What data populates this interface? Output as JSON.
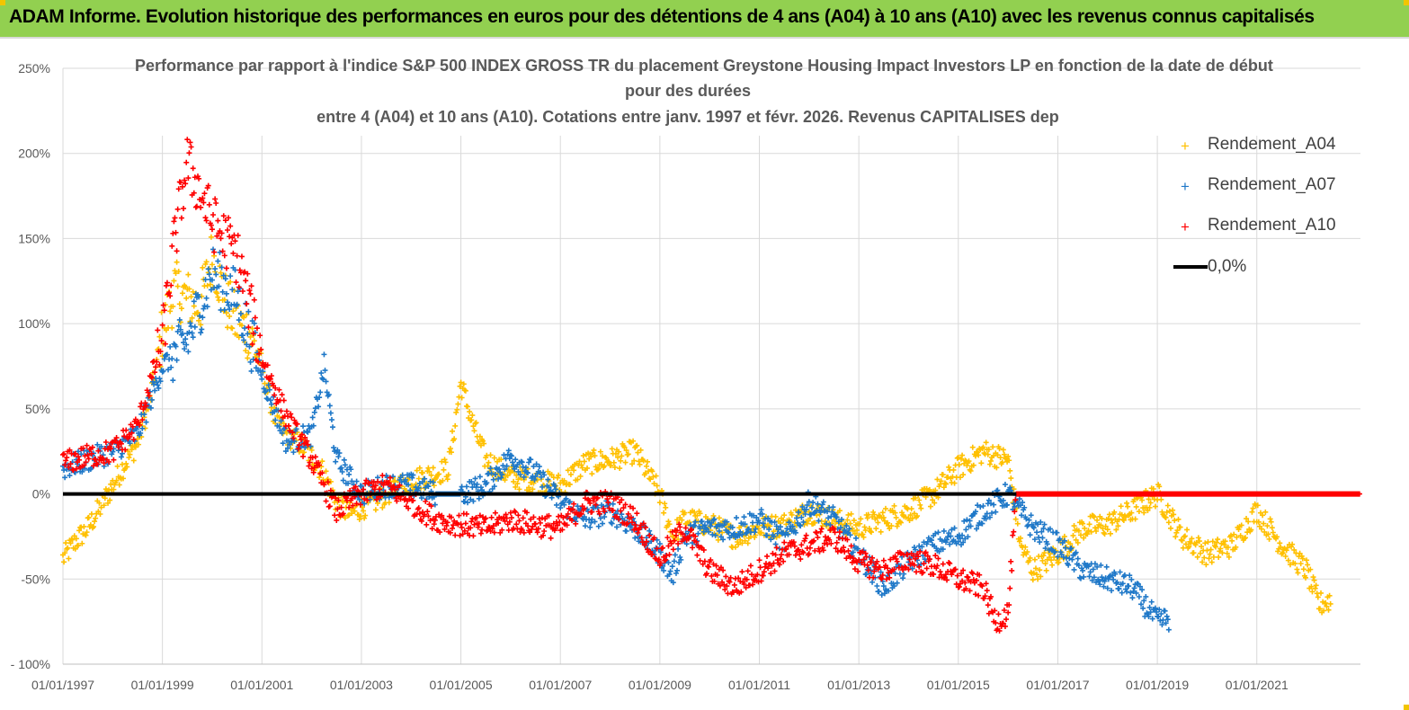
{
  "header": {
    "title": "ADAM Informe. Evolution historique des performances en euros pour des détentions de 4 ans (A04) à 10 ans (A10) avec les revenus connus capitalisés"
  },
  "chart_data": {
    "type": "scatter",
    "title_lines": [
      "Performance par rapport à l'indice S&P 500 INDEX GROSS TR  du placement Greystone Housing Impact Investors LP en fonction de la date de début",
      "pour des durées",
      "entre 4 (A04) et 10 ans (A10). Cotations entre janv. 1997 et févr. 2026. Revenus CAPITALISES dep"
    ],
    "x_axis": {
      "type": "date",
      "range": [
        "1997-01-01",
        "2023-02-01"
      ],
      "tick_labels": [
        "01/01/1997",
        "01/01/1999",
        "01/01/2001",
        "01/01/2003",
        "01/01/2005",
        "01/01/2007",
        "01/01/2009",
        "01/01/2011",
        "01/01/2013",
        "01/01/2015",
        "01/01/2017",
        "01/01/2019",
        "01/01/2021"
      ]
    },
    "y_axis": {
      "range": [
        -100,
        250
      ],
      "unit": "%",
      "tick_labels": [
        "250%",
        "200%",
        "150%",
        "100%",
        "50%",
        "0%",
        "-50%",
        "- 100%"
      ]
    },
    "grid": "vertical and horizontal",
    "legend_position": "top-right",
    "reference_line": {
      "name": "0,0%",
      "value": 0,
      "color": "#000000"
    },
    "series": [
      {
        "name": "Rendement_A04",
        "color": "#ffc000",
        "points": [
          [
            "1997-01",
            -38
          ],
          [
            "1997-04",
            -28
          ],
          [
            "1997-07",
            -20
          ],
          [
            "1997-10",
            -8
          ],
          [
            "1998-01",
            5
          ],
          [
            "1998-04",
            18
          ],
          [
            "1998-07",
            30
          ],
          [
            "1998-10",
            55
          ],
          [
            "1999-01",
            95
          ],
          [
            "1999-04",
            120
          ],
          [
            "1999-07",
            115
          ],
          [
            "1999-10",
            110
          ],
          [
            "2000-01",
            140
          ],
          [
            "2000-04",
            115
          ],
          [
            "2000-07",
            100
          ],
          [
            "2000-10",
            95
          ],
          [
            "2001-01",
            75
          ],
          [
            "2001-04",
            45
          ],
          [
            "2001-07",
            35
          ],
          [
            "2001-10",
            30
          ],
          [
            "2002-01",
            22
          ],
          [
            "2002-04",
            12
          ],
          [
            "2002-07",
            -5
          ],
          [
            "2002-10",
            -12
          ],
          [
            "2003-01",
            -8
          ],
          [
            "2003-04",
            -5
          ],
          [
            "2003-07",
            0
          ],
          [
            "2003-10",
            5
          ],
          [
            "2004-01",
            8
          ],
          [
            "2004-04",
            10
          ],
          [
            "2004-07",
            12
          ],
          [
            "2004-10",
            15
          ],
          [
            "2005-01",
            65
          ],
          [
            "2005-04",
            40
          ],
          [
            "2005-07",
            20
          ],
          [
            "2005-10",
            15
          ],
          [
            "2006-01",
            10
          ],
          [
            "2006-07",
            8
          ],
          [
            "2007-01",
            5
          ],
          [
            "2007-07",
            18
          ],
          [
            "2008-01",
            20
          ],
          [
            "2008-07",
            25
          ],
          [
            "2009-01",
            0
          ],
          [
            "2009-04",
            -25
          ],
          [
            "2009-07",
            -15
          ],
          [
            "2010-01",
            -18
          ],
          [
            "2010-07",
            -25
          ],
          [
            "2011-01",
            -20
          ],
          [
            "2011-07",
            -18
          ],
          [
            "2012-01",
            -10
          ],
          [
            "2012-07",
            -15
          ],
          [
            "2013-01",
            -20
          ],
          [
            "2013-07",
            -15
          ],
          [
            "2014-01",
            -10
          ],
          [
            "2014-07",
            0
          ],
          [
            "2015-01",
            15
          ],
          [
            "2015-07",
            25
          ],
          [
            "2016-01",
            20
          ],
          [
            "2016-04",
            -30
          ],
          [
            "2016-07",
            -45
          ],
          [
            "2017-01",
            -35
          ],
          [
            "2017-07",
            -20
          ],
          [
            "2018-01",
            -18
          ],
          [
            "2018-07",
            -10
          ],
          [
            "2019-01",
            0
          ],
          [
            "2019-07",
            -25
          ],
          [
            "2020-01",
            -35
          ],
          [
            "2020-07",
            -30
          ],
          [
            "2021-01",
            -10
          ],
          [
            "2021-07",
            -30
          ],
          [
            "2022-01",
            -45
          ],
          [
            "2022-04",
            -65
          ],
          [
            "2022-07",
            -62
          ]
        ]
      },
      {
        "name": "Rendement_A07",
        "color": "#1f78c8",
        "points": [
          [
            "1997-01",
            15
          ],
          [
            "1997-07",
            20
          ],
          [
            "1998-01",
            25
          ],
          [
            "1998-07",
            35
          ],
          [
            "1999-01",
            75
          ],
          [
            "1999-07",
            90
          ],
          [
            "2000-01",
            130
          ],
          [
            "2000-07",
            115
          ],
          [
            "2001-01",
            70
          ],
          [
            "2001-07",
            30
          ],
          [
            "2002-01",
            35
          ],
          [
            "2002-04",
            75
          ],
          [
            "2002-07",
            20
          ],
          [
            "2003-01",
            0
          ],
          [
            "2003-07",
            5
          ],
          [
            "2004-01",
            5
          ],
          [
            "2004-07",
            0
          ],
          [
            "2005-01",
            0
          ],
          [
            "2005-07",
            5
          ],
          [
            "2006-01",
            22
          ],
          [
            "2006-07",
            12
          ],
          [
            "2007-01",
            -5
          ],
          [
            "2007-07",
            -15
          ],
          [
            "2008-01",
            -10
          ],
          [
            "2008-07",
            -20
          ],
          [
            "2009-01",
            -35
          ],
          [
            "2009-04",
            -48
          ],
          [
            "2009-07",
            -25
          ],
          [
            "2010-01",
            -20
          ],
          [
            "2010-07",
            -20
          ],
          [
            "2011-01",
            -15
          ],
          [
            "2011-07",
            -28
          ],
          [
            "2012-01",
            -5
          ],
          [
            "2012-07",
            -15
          ],
          [
            "2013-01",
            -35
          ],
          [
            "2013-07",
            -55
          ],
          [
            "2014-01",
            -40
          ],
          [
            "2014-07",
            -30
          ],
          [
            "2015-01",
            -25
          ],
          [
            "2015-07",
            -10
          ],
          [
            "2016-01",
            0
          ],
          [
            "2016-07",
            -20
          ],
          [
            "2017-01",
            -30
          ],
          [
            "2017-07",
            -45
          ],
          [
            "2018-01",
            -50
          ],
          [
            "2018-07",
            -55
          ],
          [
            "2019-01",
            -75
          ],
          [
            "2019-04",
            -73
          ]
        ]
      },
      {
        "name": "Rendement_A10",
        "color": "#ff0000",
        "points": [
          [
            "1997-01",
            18
          ],
          [
            "1997-07",
            22
          ],
          [
            "1998-01",
            25
          ],
          [
            "1998-07",
            40
          ],
          [
            "1999-01",
            90
          ],
          [
            "1999-04",
            150
          ],
          [
            "1999-07",
            195
          ],
          [
            "2000-01",
            160
          ],
          [
            "2000-07",
            140
          ],
          [
            "2001-01",
            80
          ],
          [
            "2001-07",
            45
          ],
          [
            "2002-01",
            20
          ],
          [
            "2002-07",
            -10
          ],
          [
            "2003-01",
            0
          ],
          [
            "2003-07",
            5
          ],
          [
            "2004-01",
            -5
          ],
          [
            "2004-07",
            -15
          ],
          [
            "2005-01",
            -18
          ],
          [
            "2005-07",
            -20
          ],
          [
            "2006-01",
            -15
          ],
          [
            "2006-07",
            -18
          ],
          [
            "2007-01",
            -20
          ],
          [
            "2007-07",
            -5
          ],
          [
            "2008-01",
            -5
          ],
          [
            "2008-07",
            -15
          ],
          [
            "2009-01",
            -38
          ],
          [
            "2009-07",
            -20
          ],
          [
            "2010-01",
            -45
          ],
          [
            "2010-07",
            -55
          ],
          [
            "2011-01",
            -45
          ],
          [
            "2011-07",
            -35
          ],
          [
            "2012-01",
            -30
          ],
          [
            "2012-07",
            -25
          ],
          [
            "2013-01",
            -40
          ],
          [
            "2013-07",
            -45
          ],
          [
            "2014-01",
            -38
          ],
          [
            "2014-07",
            -42
          ],
          [
            "2015-01",
            -50
          ],
          [
            "2015-07",
            -55
          ],
          [
            "2015-10",
            -75
          ],
          [
            "2016-01",
            -70
          ],
          [
            "2016-03",
            0
          ],
          [
            "2023-02",
            0
          ]
        ]
      }
    ]
  }
}
